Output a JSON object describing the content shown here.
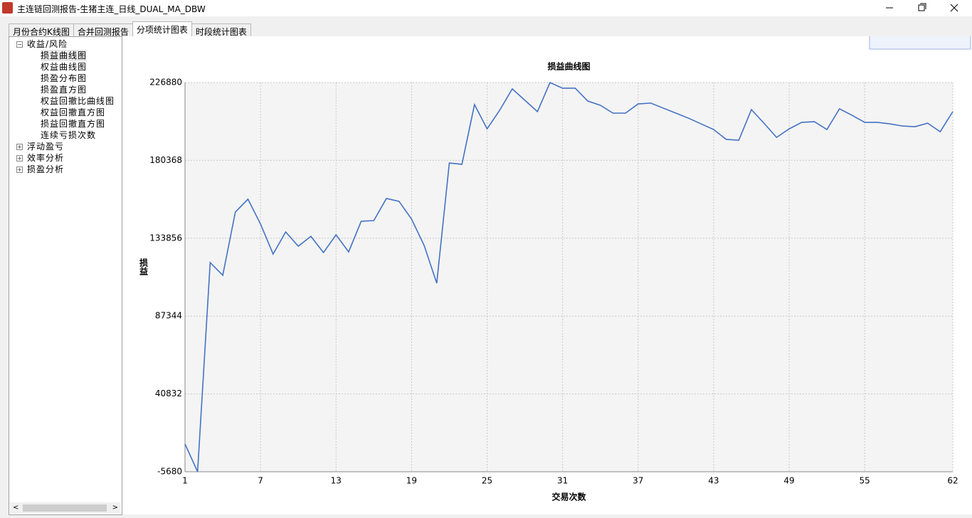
{
  "window": {
    "title": "主连链回测报告-生猪主连_日线_DUAL_MA_DBW"
  },
  "tabs": [
    "月份合约K线图",
    "合并回测报告",
    "分项统计图表",
    "时段统计图表"
  ],
  "tree": [
    {
      "label": "收益/风险",
      "children": [
        "损益曲线图",
        "权益曲线图",
        "损盈分布图",
        "损盈直方图",
        "权益回撤比曲线图",
        "权益回撤直方图",
        "损益回撤直方图",
        "连续亏损次数"
      ]
    },
    {
      "label": "浮动盈亏"
    },
    {
      "label": "效率分析"
    },
    {
      "label": "损盈分析"
    }
  ],
  "chart_data": {
    "type": "line",
    "title": "损益曲线图",
    "x_label": "交易次数",
    "y_label": "损益",
    "x": [
      1,
      2,
      3,
      4,
      5,
      6,
      7,
      8,
      9,
      10,
      11,
      12,
      13,
      14,
      15,
      16,
      17,
      18,
      19,
      20,
      21,
      22,
      23,
      24,
      25,
      26,
      27,
      28,
      29,
      30,
      31,
      32,
      33,
      34,
      35,
      36,
      37,
      38,
      39,
      40,
      41,
      42,
      43,
      44,
      45,
      46,
      47,
      48,
      49,
      50,
      51,
      52,
      53,
      54,
      55,
      56,
      57,
      58,
      59,
      60,
      61,
      62
    ],
    "series": [
      {
        "name": "损益",
        "color": "#4472c4",
        "values": [
          10900,
          -5680,
          119300,
          111700,
          149500,
          157200,
          142300,
          124400,
          137600,
          129100,
          135000,
          125300,
          135900,
          125700,
          144000,
          144400,
          157600,
          155900,
          145300,
          129500,
          107000,
          178800,
          178000,
          213700,
          199200,
          210300,
          223100,
          216300,
          209500,
          226880,
          223500,
          223500,
          215800,
          213300,
          208600,
          208600,
          214100,
          214600,
          211600,
          208600,
          205600,
          202200,
          198800,
          192900,
          192400,
          210700,
          202600,
          194100,
          199200,
          203100,
          203500,
          198800,
          211200,
          207300,
          203100,
          203100,
          202200,
          200900,
          200500,
          202600,
          197500,
          209500
        ]
      }
    ],
    "xlim": [
      1,
      62
    ],
    "xticks": [
      1,
      7,
      13,
      19,
      25,
      31,
      37,
      43,
      49,
      55,
      62
    ],
    "ylim": [
      -5680,
      226880
    ],
    "yticks": [
      -5680,
      40832,
      87344,
      133856,
      180368,
      226880
    ],
    "grid": true
  }
}
